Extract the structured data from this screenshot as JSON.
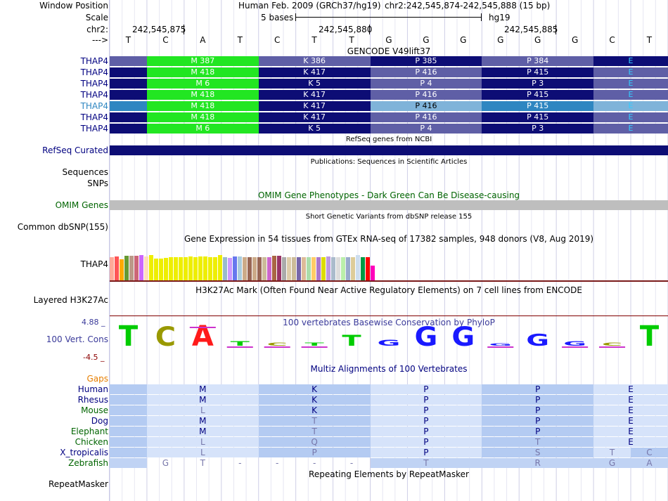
{
  "header": {
    "window_position_label": "Window Position",
    "assembly": "Human Feb. 2009 (GRCh37/hg19)",
    "position": "chr2:242,545,874-242,545,888 (15 bp)",
    "scale_label": "Scale",
    "scale_value": "5 bases",
    "scale_db": "hg19",
    "chrom_label": "chr2:",
    "ticks": [
      "242,545,875",
      "242,545,880",
      "242,545,885"
    ],
    "strand_label": "--->",
    "bases": [
      "T",
      "C",
      "A",
      "T",
      "C",
      "T",
      "T",
      "G",
      "G",
      "G",
      "G",
      "G",
      "G",
      "C",
      "T"
    ]
  },
  "gencode": {
    "title": "GENCODE V49lift37",
    "rows": [
      {
        "label": "THAP4",
        "cells": [
          "M 387",
          "K 386",
          "P 385",
          "P 384",
          "E"
        ]
      },
      {
        "label": "THAP4",
        "cells": [
          "M 418",
          "K 417",
          "P 416",
          "P 415",
          "E"
        ]
      },
      {
        "label": "THAP4",
        "cells": [
          "M 6",
          "K 5",
          "P 4",
          "P 3",
          "E"
        ]
      },
      {
        "label": "THAP4",
        "cells": [
          "M 418",
          "K 417",
          "P 416",
          "P 415",
          "E"
        ]
      },
      {
        "label": "THAP4",
        "cells": [
          "M 418",
          "K 417",
          "P 416",
          "P 415",
          "E"
        ]
      },
      {
        "label": "THAP4",
        "cells": [
          "M 418",
          "K 417",
          "P 416",
          "P 415",
          "E"
        ]
      },
      {
        "label": "THAP4",
        "cells": [
          "M 6",
          "K 5",
          "P 4",
          "P 3",
          "E"
        ]
      }
    ],
    "colors": {
      "dark": "#0d0d75",
      "light": "#5f5fa6",
      "green": "#22e622",
      "highlight": "#2e86c1",
      "highlight_light": "#7fb3d9",
      "exon_text": "#33ccff"
    }
  },
  "refseq": {
    "title": "RefSeq genes from NCBI",
    "label": "RefSeq Curated",
    "color": "#0d0d75"
  },
  "publications": {
    "title": "Publications: Sequences in Scientific Articles",
    "label_line1": "Sequences",
    "label_line2": "SNPs"
  },
  "omim": {
    "title": "OMIM Gene Phenotypes - Dark Green Can Be Disease-causing",
    "label": "OMIM Genes",
    "color": "#006400",
    "bar_color": "#bebebe"
  },
  "dbsnp": {
    "title": "Short Genetic Variants from dbSNP release 155",
    "label": "Common dbSNP(155)"
  },
  "gtex": {
    "title": "Gene Expression in 54 tissues from GTEx RNA-seq of 17382 samples, 948 donors (V8, Aug 2019)",
    "label": "THAP4",
    "tissue_values": [
      0.66,
      0.68,
      0.6,
      0.7,
      0.7,
      0.71,
      0.72,
      0.68,
      0.72,
      0.62,
      0.62,
      0.64,
      0.66,
      0.66,
      0.66,
      0.66,
      0.68,
      0.66,
      0.68,
      0.68,
      0.66,
      0.66,
      0.72,
      0.66,
      0.64,
      0.68,
      0.68,
      0.66,
      0.66,
      0.66,
      0.66,
      0.66,
      0.66,
      0.7,
      0.7,
      0.66,
      0.66,
      0.66,
      0.66,
      0.66,
      0.66,
      0.66,
      0.66,
      0.66,
      0.68,
      0.66,
      0.66,
      0.66,
      0.66,
      0.66,
      0.72,
      0.66,
      0.66,
      0.42
    ],
    "tissue_colors": [
      "#ffaa99",
      "#ff5555",
      "#ffaa00",
      "#669933",
      "#bb9988",
      "#cc6677",
      "#cc66ff",
      "#ffddbb",
      "#eeee00",
      "#eeee00",
      "#eeee00",
      "#eeee00",
      "#eeee00",
      "#eeee00",
      "#eeee00",
      "#eeee00",
      "#eeee00",
      "#eeee00",
      "#eeee00",
      "#eeee00",
      "#eeee00",
      "#eeee00",
      "#eeee00",
      "#99bbcc",
      "#cc99ff",
      "#6677ee",
      "#aaccdd",
      "#ccaa88",
      "#996655",
      "#ccaa88",
      "#996655",
      "#ccbb99",
      "#cc66cc",
      "#aa6644",
      "#993366",
      "#aaaaaa",
      "#ddccaa",
      "#ccbb99",
      "#7766aa",
      "#ddbb99",
      "#aaddaa",
      "#ffcc66",
      "#aa77cc",
      "#dddd00",
      "#bb99dd",
      "#aabbcc",
      "#dddddd",
      "#bbeeaa",
      "#99aacc",
      "#ddcc99",
      "#ccddee",
      "#009944",
      "#ff0000",
      "#ff00bb"
    ]
  },
  "h3k27ac": {
    "title": "H3K27Ac Mark (Often Found Near Active Regulatory Elements) on 7 cell lines from ENCODE",
    "label": "Layered H3K27Ac",
    "line_color": "#800000"
  },
  "conservation": {
    "title": "100 vertebrates Basewise Conservation by PhyloP",
    "label": "100 Vert. Cons",
    "y_max": "4.88 _",
    "y_min": "-4.5 _",
    "scores": [
      2.8,
      2.6,
      2.8,
      0.6,
      0.4,
      0.4,
      1.5,
      0.8,
      2.6,
      2.6,
      0.3,
      1.6,
      0.6,
      0.4,
      2.8
    ],
    "base_colors": {
      "A": "#ff1a1a",
      "C": "#999900",
      "G": "#1a1aff",
      "T": "#00cc00"
    },
    "neg_color": "#cc33cc"
  },
  "multiz": {
    "title": "Multiz Alignments of 100 Vertebrates",
    "gaps_label": "Gaps",
    "species": [
      {
        "name": "Human",
        "color": "#000080",
        "cells": [
          "",
          "M",
          "K",
          "P",
          "P",
          "E"
        ]
      },
      {
        "name": "Rhesus",
        "color": "#000080",
        "cells": [
          "",
          "M",
          "K",
          "P",
          "P",
          "E"
        ]
      },
      {
        "name": "Mouse",
        "color": "#006400",
        "cells": [
          "",
          "L",
          "K",
          "P",
          "P",
          "E"
        ]
      },
      {
        "name": "Dog",
        "color": "#000080",
        "cells": [
          "",
          "M",
          "T",
          "P",
          "P",
          "E"
        ]
      },
      {
        "name": "Elephant",
        "color": "#006400",
        "cells": [
          "",
          "M",
          "T",
          "P",
          "P",
          "E"
        ]
      },
      {
        "name": "Chicken",
        "color": "#006400",
        "cells": [
          "",
          "L",
          "Q",
          "P",
          "T",
          "E"
        ]
      },
      {
        "name": "X_tropicalis",
        "color": "#000080",
        "cells": [
          "",
          "L",
          "P",
          "P",
          "S",
          "T",
          "C"
        ]
      },
      {
        "name": "Zebrafish",
        "color": "#006400",
        "cells": [
          "G",
          "T",
          "-",
          "-",
          "-",
          "-",
          "T",
          "R",
          "G",
          "A"
        ]
      }
    ],
    "colors": {
      "fill_dark": "#b4cbf2",
      "fill_light": "#d6e3fa",
      "fill_zebra": "#c0d3f4",
      "text_match": "#000080",
      "text_mismatch": "#7777aa"
    }
  },
  "repeatmasker": {
    "title": "Repeating Elements by RepeatMasker",
    "label": "RepeatMasker"
  }
}
